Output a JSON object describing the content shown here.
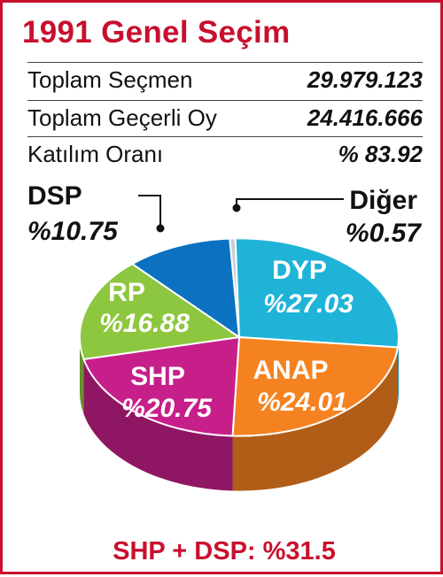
{
  "title": "1991 Genel Seçim",
  "stats": [
    {
      "label": "Toplam Seçmen",
      "value": "29.979.123"
    },
    {
      "label": "Toplam Geçerli Oy",
      "value": "24.416.666"
    },
    {
      "label": "Katılım Oranı",
      "value": "% 83.92"
    }
  ],
  "footer": "SHP + DSP: %31.5",
  "chart_data": {
    "type": "pie",
    "title": "",
    "slices": [
      {
        "name": "Diğer",
        "value": 0.57,
        "label": "%0.57",
        "color": "#c9cdd4"
      },
      {
        "name": "DYP",
        "value": 27.03,
        "label": "%27.03",
        "color": "#1fb3d8"
      },
      {
        "name": "ANAP",
        "value": 24.01,
        "label": "%24.01",
        "color": "#f58220"
      },
      {
        "name": "SHP",
        "value": 20.75,
        "label": "%20.75",
        "color": "#c71f8a"
      },
      {
        "name": "RP",
        "value": 16.88,
        "label": "%16.88",
        "color": "#8dc63f"
      },
      {
        "name": "DSP",
        "value": 10.75,
        "label": "%10.75",
        "color": "#0a72c1"
      }
    ]
  }
}
